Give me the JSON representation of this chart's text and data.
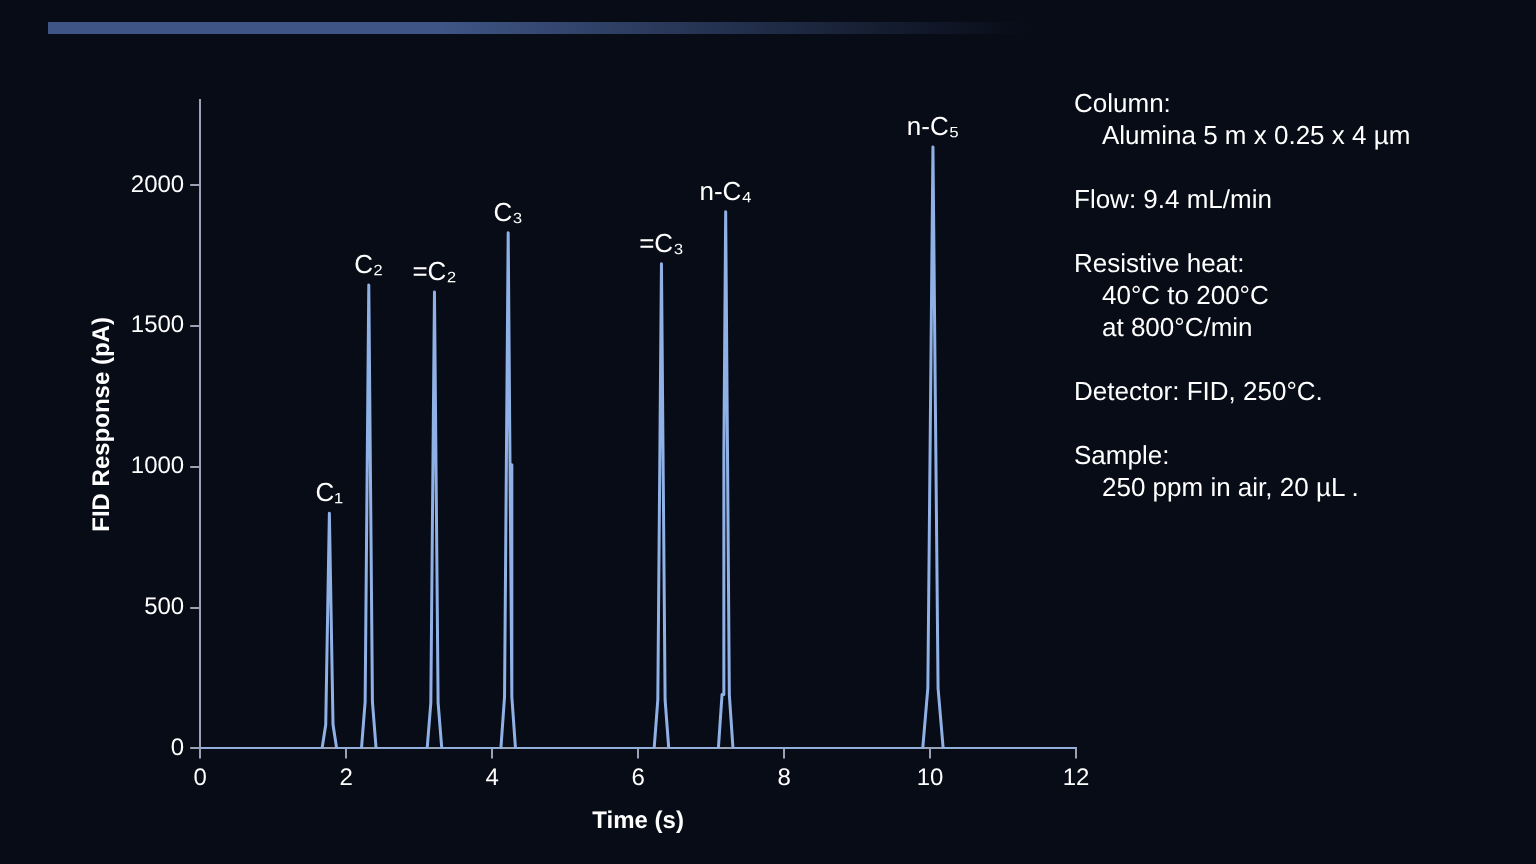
{
  "chart_data": {
    "type": "line",
    "xlabel": "Time (s)",
    "ylabel": "FID Response (pA)",
    "x": [
      0,
      1.67,
      1.72,
      1.745,
      1.77,
      1.795,
      1.82,
      1.87,
      2.21,
      2.26,
      2.285,
      2.31,
      2.335,
      2.36,
      2.41,
      3.11,
      3.16,
      3.185,
      3.21,
      3.235,
      3.26,
      3.31,
      4.12,
      4.17,
      4.195,
      4.22,
      4.245,
      4.27,
      4.32,
      6.22,
      6.27,
      6.295,
      6.32,
      6.345,
      6.37,
      6.42,
      7.1,
      7.15,
      7.175,
      7.2,
      7.225,
      7.25,
      7.3,
      9.9,
      9.97,
      10.005,
      10.04,
      10.075,
      10.11,
      10.18,
      12
    ],
    "series": [
      {
        "color": "#8fb1e6",
        "values": [
          0,
          0,
          84,
          459,
          835,
          459,
          84,
          0,
          0,
          165,
          905,
          1645,
          905,
          165,
          0,
          0,
          162,
          891,
          1620,
          891,
          162,
          0,
          0,
          183,
          1007,
          1830,
          1007,
          183,
          0,
          0,
          172,
          946,
          1720,
          946,
          172,
          0,
          0,
          191,
          1048,
          1905,
          1048,
          191,
          0,
          0,
          214,
          1174,
          2135,
          1174,
          214,
          0,
          0
        ]
      }
    ],
    "xlim": [
      0,
      12
    ],
    "xticks": [
      0,
      2,
      4,
      6,
      8,
      10,
      12
    ],
    "ylim": [
      0,
      2300
    ],
    "yticks": [
      0,
      500,
      1000,
      1500,
      2000
    ],
    "grid": false,
    "legend": false,
    "marker": "none",
    "line_style": "solid",
    "annotations": [
      {
        "text": "C₁",
        "x": 1.77,
        "y": 835
      },
      {
        "text": "C₂",
        "x": 2.31,
        "y": 1645
      },
      {
        "text": "=C₂",
        "x": 3.21,
        "y": 1620
      },
      {
        "text": "C₃",
        "x": 4.22,
        "y": 1830
      },
      {
        "text": "=C₃",
        "x": 6.32,
        "y": 1720
      },
      {
        "text": "n-C₄",
        "x": 7.2,
        "y": 1905
      },
      {
        "text": "n-C₅",
        "x": 10.04,
        "y": 2135
      },
      "Column:\nAlumina 5 m x 0.25 x 4 µm",
      "Flow:  9.4 mL/min",
      "Resistive heat:\n40°C to 200°C\nat 800°C/min",
      "Detector:  FID, 250°C.",
      "Sample:\n250 ppm in air, 20 µL ."
    ]
  }
}
